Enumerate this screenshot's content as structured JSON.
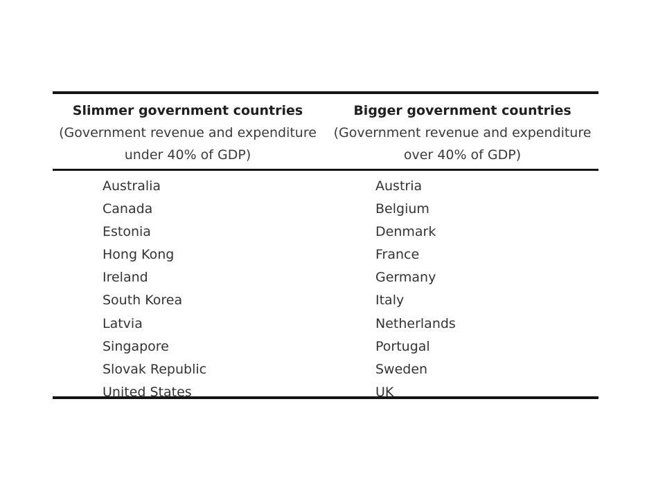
{
  "table": {
    "left": {
      "title": "Slimmer government countries",
      "subtitle_line1": "(Government revenue and expenditure",
      "subtitle_line2": "under 40% of GDP)",
      "countries": [
        "Australia",
        "Canada",
        "Estonia",
        "Hong Kong",
        "Ireland",
        "South Korea",
        "Latvia",
        "Singapore",
        "Slovak Republic",
        "United States"
      ]
    },
    "right": {
      "title": "Bigger government countries",
      "subtitle_line1": "(Government revenue and expenditure",
      "subtitle_line2": "over 40% of GDP)",
      "countries": [
        "Austria",
        "Belgium",
        "Denmark",
        "France",
        "Germany",
        "Italy",
        "Netherlands",
        "Portugal",
        "Sweden",
        "UK"
      ]
    }
  }
}
